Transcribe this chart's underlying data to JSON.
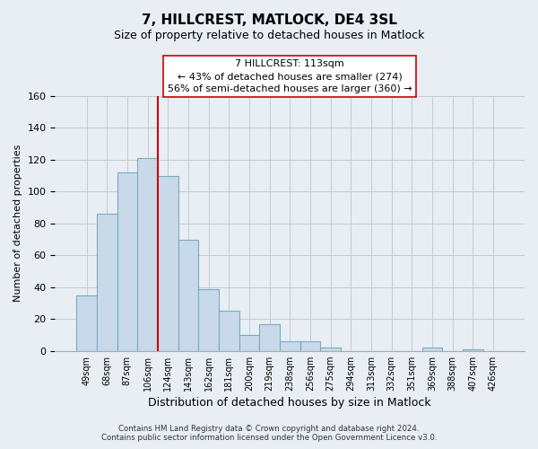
{
  "title": "7, HILLCREST, MATLOCK, DE4 3SL",
  "subtitle": "Size of property relative to detached houses in Matlock",
  "xlabel": "Distribution of detached houses by size in Matlock",
  "ylabel": "Number of detached properties",
  "bar_labels": [
    "49sqm",
    "68sqm",
    "87sqm",
    "106sqm",
    "124sqm",
    "143sqm",
    "162sqm",
    "181sqm",
    "200sqm",
    "219sqm",
    "238sqm",
    "256sqm",
    "275sqm",
    "294sqm",
    "313sqm",
    "332sqm",
    "351sqm",
    "369sqm",
    "388sqm",
    "407sqm",
    "426sqm"
  ],
  "bar_values": [
    35,
    86,
    112,
    121,
    110,
    70,
    39,
    25,
    10,
    17,
    6,
    6,
    2,
    0,
    0,
    0,
    0,
    2,
    0,
    1,
    0
  ],
  "bar_color": "#c8daea",
  "bar_edge_color": "#7aaabe",
  "vline_x_index": 3.5,
  "vline_color": "#cc0000",
  "ylim": [
    0,
    160
  ],
  "yticks": [
    0,
    20,
    40,
    60,
    80,
    100,
    120,
    140,
    160
  ],
  "annotation_line1": "7 HILLCREST: 113sqm",
  "annotation_line2": "← 43% of detached houses are smaller (274)",
  "annotation_line3": "56% of semi-detached houses are larger (360) →",
  "footer_line1": "Contains HM Land Registry data © Crown copyright and database right 2024.",
  "footer_line2": "Contains public sector information licensed under the Open Government Licence v3.0.",
  "bg_color": "#e8eef4",
  "plot_bg_color": "#e8eef4",
  "grid_color": "#c0ccd8",
  "title_fontsize": 11,
  "subtitle_fontsize": 9
}
